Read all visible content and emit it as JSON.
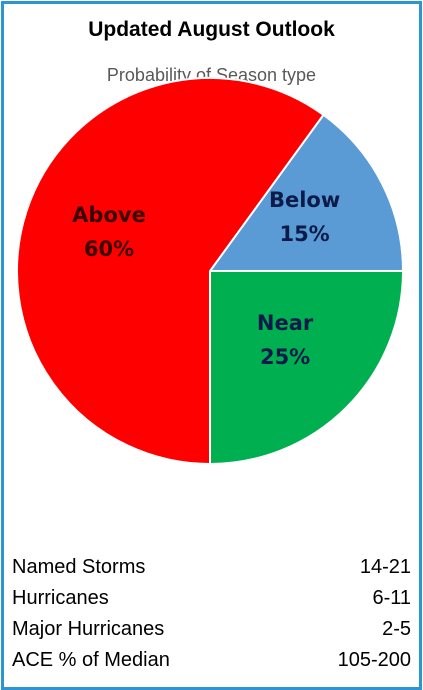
{
  "chart_data": {
    "type": "pie",
    "title": "Updated August Outlook",
    "subtitle": "Probability of Season type",
    "slices": [
      {
        "label": "Below",
        "value": 15,
        "value_label": "15%",
        "color": "#5b9bd5",
        "text_color": "#0d1b4a"
      },
      {
        "label": "Near",
        "value": 25,
        "value_label": "25%",
        "color": "#00b050",
        "text_color": "#0d1b4a"
      },
      {
        "label": "Above",
        "value": 60,
        "value_label": "60%",
        "color": "#ff0000",
        "text_color": "#3a0000"
      }
    ]
  },
  "stats": [
    {
      "label": "Named Storms",
      "value": "14-21"
    },
    {
      "label": "Hurricanes",
      "value": "6-11"
    },
    {
      "label": "Major Hurricanes",
      "value": "2-5"
    },
    {
      "label": "ACE % of Median",
      "value": "105-200"
    }
  ],
  "colors": {
    "border": "#2e95d3"
  }
}
